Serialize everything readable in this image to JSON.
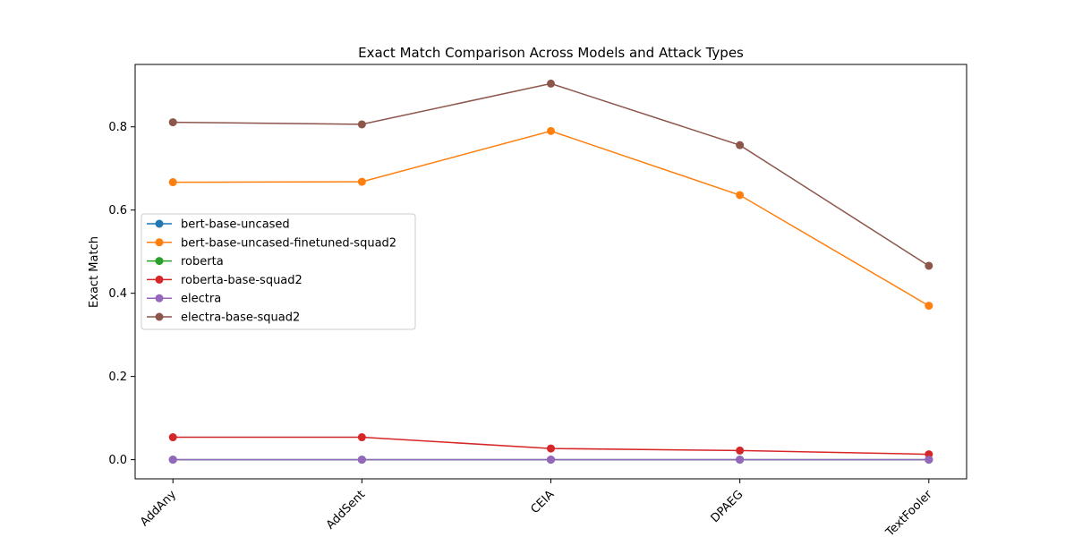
{
  "chart_data": {
    "type": "line",
    "title": "Exact Match Comparison Across Models and Attack Types",
    "xlabel": "",
    "ylabel": "Exact Match",
    "categories": [
      "AddAny",
      "AddSent",
      "CEIA",
      "DPAEG",
      "TextFooler"
    ],
    "ylim": [
      -0.046,
      0.95
    ],
    "yticks": [
      0.0,
      0.2,
      0.4,
      0.6,
      0.8
    ],
    "ytick_labels": [
      "0.0",
      "0.2",
      "0.4",
      "0.6",
      "0.8"
    ],
    "grid": false,
    "legend_position": "center-left",
    "series": [
      {
        "name": "bert-base-uncased",
        "color": "#1f77b4",
        "values": [
          0.0,
          0.0,
          0.0,
          0.0,
          0.0
        ]
      },
      {
        "name": "bert-base-uncased-finetuned-squad2",
        "color": "#ff7f0e",
        "values": [
          0.667,
          0.668,
          0.79,
          0.636,
          0.37
        ]
      },
      {
        "name": "roberta",
        "color": "#2ca02c",
        "values": [
          0.0,
          0.0,
          0.0,
          0.0,
          0.0
        ]
      },
      {
        "name": "roberta-base-squad2",
        "color": "#d62728",
        "values": [
          0.054,
          0.054,
          0.027,
          0.022,
          0.013
        ]
      },
      {
        "name": "electra",
        "color": "#9467bd",
        "values": [
          0.0,
          0.0,
          0.0,
          0.0,
          0.0
        ]
      },
      {
        "name": "electra-base-squad2",
        "color": "#8c564b",
        "values": [
          0.811,
          0.806,
          0.904,
          0.756,
          0.466
        ]
      }
    ]
  }
}
